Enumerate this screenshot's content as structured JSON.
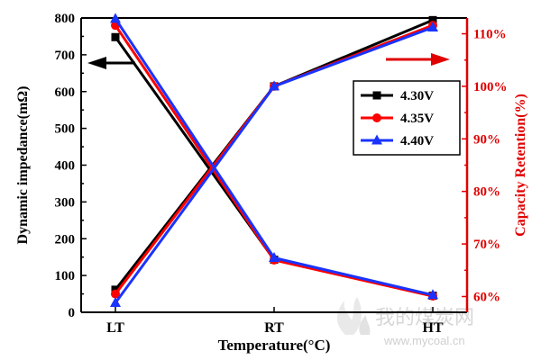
{
  "chart_data": {
    "type": "line",
    "categories": [
      "LT",
      "RT",
      "HT"
    ],
    "xlabel": "Temperature(°C)",
    "ylabel_left": "Dynamic impedance(mΩ)",
    "ylabel_right": "Capacity Retention(%)",
    "ylim_left": [
      0,
      800
    ],
    "ylim_right": [
      57,
      113
    ],
    "yticks_left": [
      "0",
      "100",
      "200",
      "300",
      "400",
      "500",
      "600",
      "700",
      "800"
    ],
    "yticks_right": [
      "60%",
      "70%",
      "80%",
      "90%",
      "100%",
      "110%"
    ],
    "legend_position": "center-right",
    "series": [
      {
        "name": "4.30V",
        "color": "#000000",
        "marker": "square",
        "impedance": [
          748,
          143,
          45
        ],
        "retention": [
          61.3,
          100,
          112.6
        ]
      },
      {
        "name": "4.35V",
        "color": "#ff0000",
        "marker": "circle",
        "impedance": [
          780,
          142,
          44
        ],
        "retention": [
          60.5,
          100,
          111.6
        ]
      },
      {
        "name": "4.40V",
        "color": "#1a33ff",
        "marker": "triangle",
        "impedance": [
          798,
          148,
          47
        ],
        "retention": [
          58.8,
          100,
          111.2
        ]
      }
    ]
  },
  "watermark": {
    "text_cn": "我的煤炭网",
    "url": "www.mycoal.cn"
  }
}
